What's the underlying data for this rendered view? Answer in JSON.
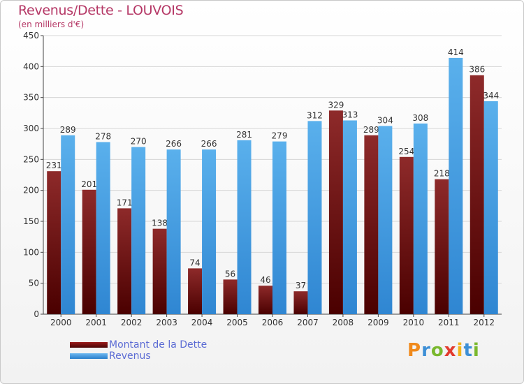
{
  "header": {
    "title": "Revenus/Dette - LOUVOIS",
    "subtitle": "(en milliers d'€)"
  },
  "legend": {
    "items": [
      {
        "label": "Montant de la Dette",
        "color": "#7a1010"
      },
      {
        "label": "Revenus",
        "color": "#4aa3e6"
      }
    ]
  },
  "brand": {
    "letters": [
      "P",
      "r",
      "o",
      "x",
      "i",
      "t",
      "i"
    ],
    "colors": [
      "#f08a1c",
      "#3d8fd6",
      "#7ab82e",
      "#e23b2e",
      "#f2b51c",
      "#3d8fd6",
      "#7ab82e"
    ]
  },
  "chart_data": {
    "type": "bar",
    "categories": [
      "2000",
      "2001",
      "2002",
      "2003",
      "2004",
      "2005",
      "2006",
      "2007",
      "2008",
      "2009",
      "2010",
      "2011",
      "2012"
    ],
    "series": [
      {
        "name": "Montant de la Dette",
        "color": "#7a1010",
        "values": [
          231,
          201,
          171,
          138,
          74,
          56,
          46,
          37,
          329,
          289,
          254,
          218,
          386
        ]
      },
      {
        "name": "Revenus",
        "color": "#4aa3e6",
        "values": [
          289,
          278,
          270,
          266,
          266,
          281,
          279,
          312,
          313,
          304,
          308,
          414,
          344
        ]
      }
    ],
    "ylim": [
      0,
      450
    ],
    "yticks": [
      0,
      50,
      100,
      150,
      200,
      250,
      300,
      350,
      400,
      450
    ],
    "grid": true,
    "legend_position": "bottom-left"
  }
}
